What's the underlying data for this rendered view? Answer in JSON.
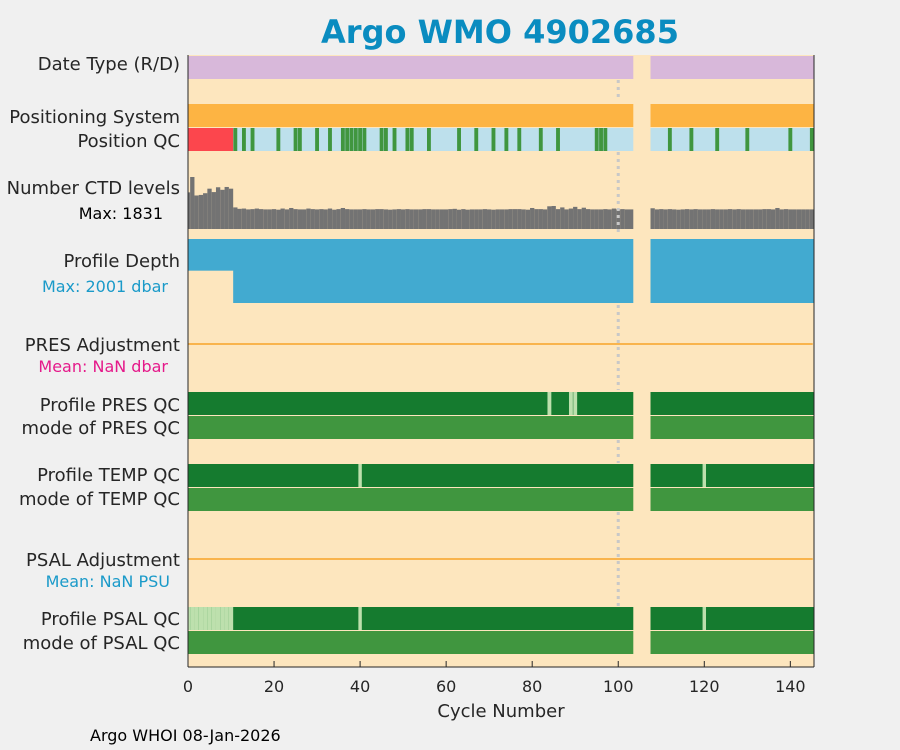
{
  "chart_data": {
    "type": "bar",
    "title": "Argo WMO 4902685",
    "xlabel": "Cycle Number",
    "xlim": [
      0,
      145.5
    ],
    "xticks": [
      0,
      20,
      40,
      60,
      80,
      100,
      120,
      140
    ],
    "footer": "Argo WHOI 08-Jan-2026",
    "gap_cycles": [
      104,
      105,
      106,
      107
    ],
    "marker_cycle": 100,
    "colors": {
      "background": "#fde6be",
      "title": "#0a8cc0",
      "date_type": "#d8b8da",
      "positioning": "#fdb443",
      "qc_good": "#40963f",
      "qc_missing": "#bde0ec",
      "qc_bad": "#fc464d",
      "ctd": "#737373",
      "depth": "#42aad0",
      "adjust_line": "#f9b44d",
      "profile_qc_a": "#157b2f",
      "profile_qc_light": "#bde0ad",
      "marker": "#c8c8c8",
      "pres_mean": "#e5198a",
      "psal_mean": "#1a9ac9"
    },
    "rows": {
      "date_type": {
        "label": "Date Type (R/D)"
      },
      "positioning": {
        "label": "Positioning System"
      },
      "position_qc": {
        "label": "Position QC",
        "bad_cycles": [
          [
            0,
            10
          ]
        ],
        "good_cycles": [
          11,
          13,
          15,
          21,
          25,
          26,
          30,
          33,
          36,
          37,
          38,
          39,
          40,
          41,
          45,
          46,
          48,
          51,
          52,
          56,
          63,
          67,
          71,
          74,
          77,
          82,
          86,
          95,
          96,
          97,
          112,
          117,
          123,
          130,
          140,
          145
        ]
      },
      "ctd_levels": {
        "label": "Number CTD levels",
        "max_label": "Max: 1831",
        "max": 1831,
        "values": [
          1290,
          1831,
          1180,
          1200,
          1260,
          1420,
          1300,
          1470,
          1380,
          1480,
          1420,
          760,
          710,
          720,
          690,
          700,
          720,
          700,
          690,
          690,
          700,
          680,
          720,
          690,
          740,
          700,
          690,
          690,
          720,
          700,
          690,
          700,
          690,
          720,
          680,
          700,
          740,
          700,
          690,
          690,
          690,
          700,
          690,
          690,
          700,
          700,
          690,
          680,
          690,
          700,
          690,
          700,
          690,
          690,
          690,
          700,
          700,
          690,
          690,
          690,
          690,
          700,
          710,
          680,
          700,
          680,
          690,
          690,
          690,
          700,
          690,
          680,
          690,
          690,
          690,
          700,
          700,
          700,
          690,
          680,
          740,
          700,
          700,
          690,
          800,
          810,
          700,
          760,
          690,
          720,
          780,
          700,
          750,
          700,
          690,
          690,
          690,
          700,
          690,
          720,
          690,
          700,
          690,
          690,
          0,
          0,
          0,
          0,
          730,
          690,
          700,
          690,
          700,
          690,
          680,
          690,
          700,
          690,
          700,
          690,
          690,
          690,
          700,
          690,
          690,
          690,
          700,
          690,
          700,
          690,
          690,
          690,
          690,
          690,
          700,
          700,
          690,
          740,
          690,
          700,
          690,
          690,
          690,
          690,
          690,
          690
        ]
      },
      "profile_depth": {
        "label": "Profile Depth",
        "max_label": "Max: 2001 dbar",
        "max": 2001,
        "shallow_cycles": [
          0,
          10
        ],
        "shallow_depth": 990
      },
      "pres_adjustment": {
        "label": "PRES Adjustment",
        "mean_label": "Mean:  NaN dbar"
      },
      "profile_pres_qc": {
        "label": "Profile PRES QC",
        "light_cycles": [
          84,
          89,
          90
        ]
      },
      "mode_pres_qc": {
        "label": "mode of PRES QC"
      },
      "profile_temp_qc": {
        "label": "Profile TEMP QC",
        "light_cycles": [
          40,
          120
        ]
      },
      "mode_temp_qc": {
        "label": "mode of TEMP QC"
      },
      "psal_adjustment": {
        "label": "PSAL Adjustment",
        "mean_label": "Mean:  NaN PSU"
      },
      "profile_psal_qc": {
        "label": "Profile PSAL QC",
        "light_cycles": [
          0,
          1,
          2,
          3,
          4,
          5,
          6,
          7,
          8,
          9,
          10,
          40,
          120
        ]
      },
      "mode_psal_qc": {
        "label": "mode of PSAL QC"
      }
    }
  }
}
